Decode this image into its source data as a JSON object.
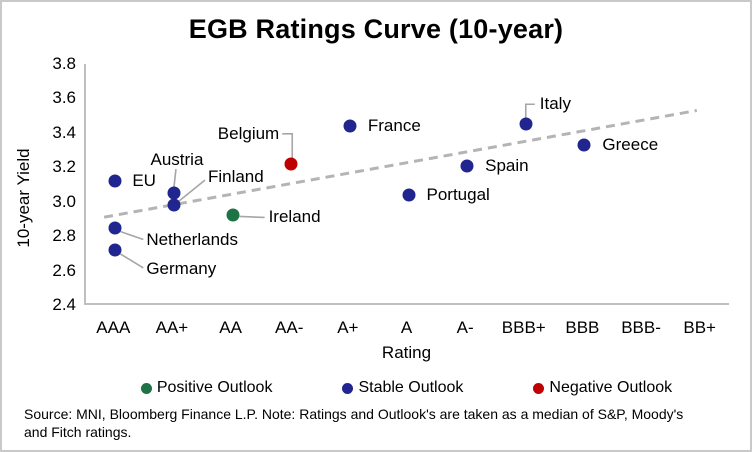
{
  "window": {
    "background": "#FFFFFF",
    "border_color": "#C9C9C9"
  },
  "chart_data": {
    "type": "scatter",
    "title": "EGB Ratings Curve (10-year)",
    "xlabel": "Rating",
    "ylabel": "10-year Yield",
    "x_categories": [
      "AAA",
      "AA+",
      "AA",
      "AA-",
      "A+",
      "A",
      "A-",
      "BBB+",
      "BBB",
      "BBB-",
      "BB+"
    ],
    "y_ticks": [
      "3.8",
      "3.6",
      "3.4",
      "3.2",
      "3.0",
      "2.8",
      "2.6",
      "2.4"
    ],
    "ylim": [
      2.4,
      3.8
    ],
    "grid": false,
    "legend_position": "bottom",
    "axis_color": "#BFBFBF",
    "leader_color": "#A6A6A6",
    "outlook_colors": {
      "positive": "#1E7346",
      "stable": "#21258F",
      "negative": "#C00000"
    },
    "trendline": {
      "style": "dashed",
      "color": "#B4B4B4",
      "start": {
        "x_frac": 0.028,
        "yield": 2.91
      },
      "end": {
        "x_frac": 0.947,
        "yield": 3.53
      }
    },
    "points": [
      {
        "country": "EU",
        "rating": "AAA",
        "yield": 3.12,
        "outlook": "stable"
      },
      {
        "country": "Netherlands",
        "rating": "AAA",
        "yield": 2.85,
        "outlook": "stable"
      },
      {
        "country": "Germany",
        "rating": "AAA",
        "yield": 2.72,
        "outlook": "stable"
      },
      {
        "country": "Austria",
        "rating": "AA+",
        "yield": 3.05,
        "outlook": "stable"
      },
      {
        "country": "Finland",
        "rating": "AA+",
        "yield": 2.98,
        "outlook": "stable"
      },
      {
        "country": "Ireland",
        "rating": "AA",
        "yield": 2.92,
        "outlook": "positive"
      },
      {
        "country": "Belgium",
        "rating": "AA-",
        "yield": 3.22,
        "outlook": "negative"
      },
      {
        "country": "France",
        "rating": "A+",
        "yield": 3.44,
        "outlook": "stable"
      },
      {
        "country": "Portugal",
        "rating": "A",
        "yield": 3.04,
        "outlook": "stable"
      },
      {
        "country": "Spain",
        "rating": "A-",
        "yield": 3.21,
        "outlook": "stable"
      },
      {
        "country": "Italy",
        "rating": "BBB+",
        "yield": 3.45,
        "outlook": "stable"
      },
      {
        "country": "Greece",
        "rating": "BBB",
        "yield": 3.33,
        "outlook": "stable"
      }
    ],
    "legend": [
      {
        "label": "Positive Outlook",
        "outlook": "positive"
      },
      {
        "label": "Stable Outlook",
        "outlook": "stable"
      },
      {
        "label": "Negative Outlook",
        "outlook": "negative"
      }
    ],
    "note_lines": [
      "Source: MNI,  Bloomberg Finance L.P. Note: Ratings and Outlook's are taken as a median of S&P, Moody's",
      "and Fitch ratings."
    ]
  }
}
